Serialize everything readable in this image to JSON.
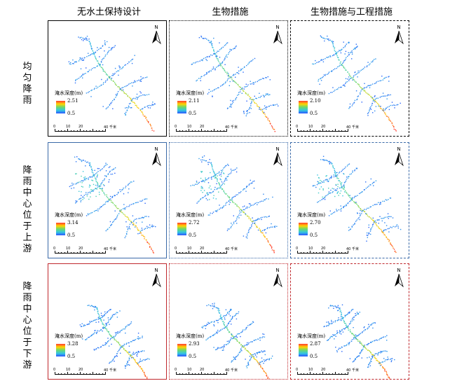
{
  "columns": [
    {
      "title": "无水土保持设计"
    },
    {
      "title": "生物措施"
    },
    {
      "title": "生物措施与工程措施"
    }
  ],
  "rows": [
    {
      "title": "均匀降雨"
    },
    {
      "title": "降雨中心位于上游"
    },
    {
      "title": "降雨中心位于下游"
    }
  ],
  "legend": {
    "title": "淹水深度(m)",
    "min": "0.5"
  },
  "north_label": "N",
  "scale_labels": [
    "0",
    "10",
    "20",
    "40 千米"
  ],
  "panels": [
    {
      "max": "2.51",
      "border_color": "#000000",
      "border_style": "solid",
      "rain_center": "uniform"
    },
    {
      "max": "2.11",
      "border_color": "#000000",
      "border_style": "dotted",
      "rain_center": "uniform"
    },
    {
      "max": "2.10",
      "border_color": "#000000",
      "border_style": "dashdot",
      "rain_center": "uniform"
    },
    {
      "max": "3.14",
      "border_color": "#3b6aa8",
      "border_style": "solid",
      "rain_center": "upstream"
    },
    {
      "max": "2.72",
      "border_color": "#3b6aa8",
      "border_style": "dotted",
      "rain_center": "upstream"
    },
    {
      "max": "2.70",
      "border_color": "#3b6aa8",
      "border_style": "dashdot",
      "rain_center": "upstream"
    },
    {
      "max": "3.28",
      "border_color": "#c0282d",
      "border_style": "solid",
      "rain_center": "downstream"
    },
    {
      "max": "2.93",
      "border_color": "#c0282d",
      "border_style": "dotted",
      "rain_center": "downstream"
    },
    {
      "max": "2.87",
      "border_color": "#c0282d",
      "border_style": "dashdot",
      "rain_center": "downstream"
    }
  ]
}
